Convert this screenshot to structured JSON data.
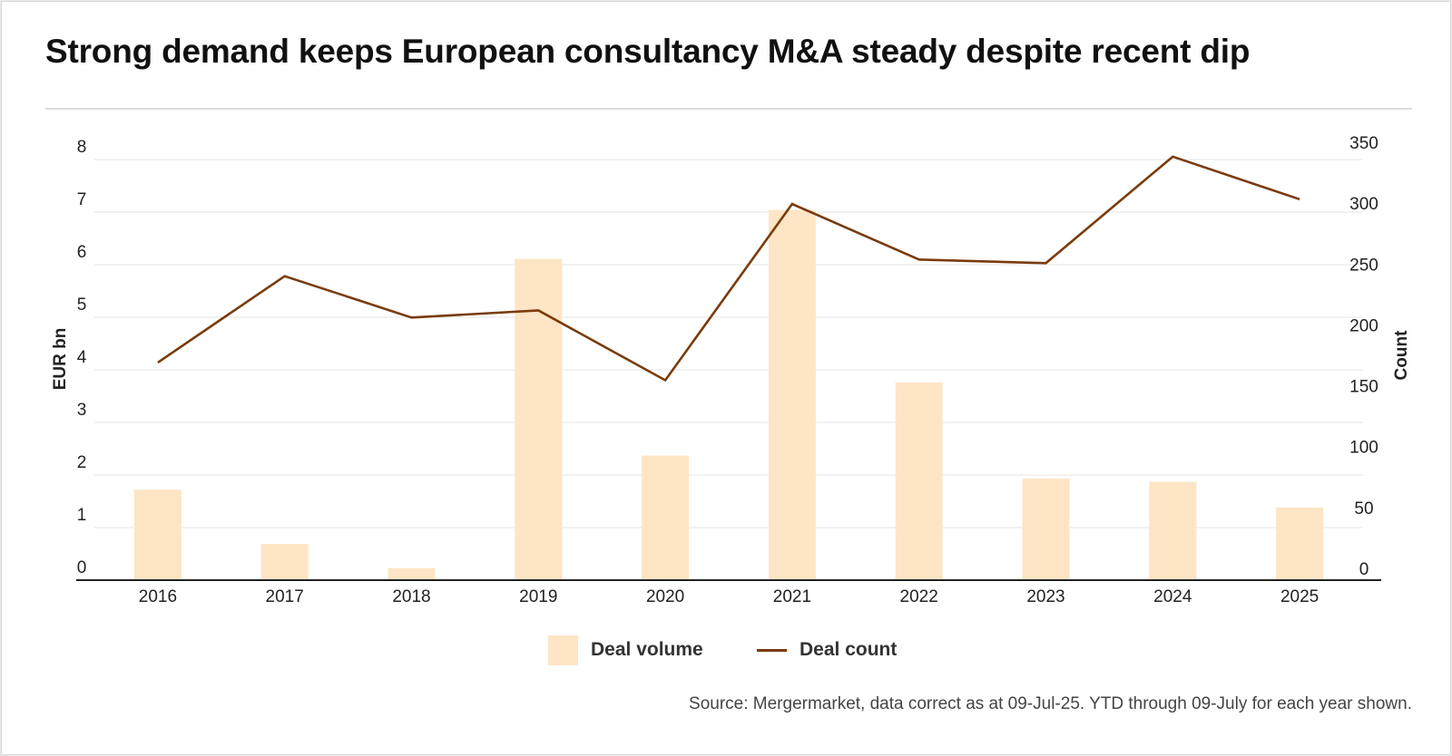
{
  "title": "Strong demand keeps European consultancy M&A steady despite recent dip",
  "source": "Source: Mergermarket, data correct as at 09-Jul-25. YTD through 09-July for each year shown.",
  "legend": {
    "bar_label": "Deal volume",
    "line_label": "Deal count"
  },
  "colors": {
    "bar": "#fde5c5",
    "line": "#7a3b0c",
    "grid": "#e6e6e6",
    "axis": "#222222"
  },
  "chart_data": {
    "type": "bar",
    "categories": [
      "2016",
      "2017",
      "2018",
      "2019",
      "2020",
      "2021",
      "2022",
      "2023",
      "2024",
      "2025"
    ],
    "series": [
      {
        "name": "Deal volume",
        "type": "bar",
        "axis": "left",
        "values": [
          1.72,
          0.69,
          0.23,
          6.11,
          2.37,
          7.04,
          3.76,
          1.93,
          1.87,
          1.38
        ]
      },
      {
        "name": "Deal count",
        "type": "line",
        "axis": "right",
        "values": [
          184,
          257,
          222,
          228,
          169,
          318,
          271,
          268,
          358,
          322
        ]
      }
    ],
    "y_left": {
      "label": "EUR bn",
      "ticks": [
        "0",
        "1",
        "2",
        "3",
        "4",
        "5",
        "6",
        "7",
        "8"
      ],
      "lim": [
        0,
        8
      ]
    },
    "y_right": {
      "label": "Count",
      "ticks": [
        "0",
        "50",
        "100",
        "150",
        "200",
        "250",
        "300",
        "350"
      ],
      "lim": [
        0,
        364
      ]
    },
    "grid": true,
    "legend_position": "bottom-center"
  }
}
